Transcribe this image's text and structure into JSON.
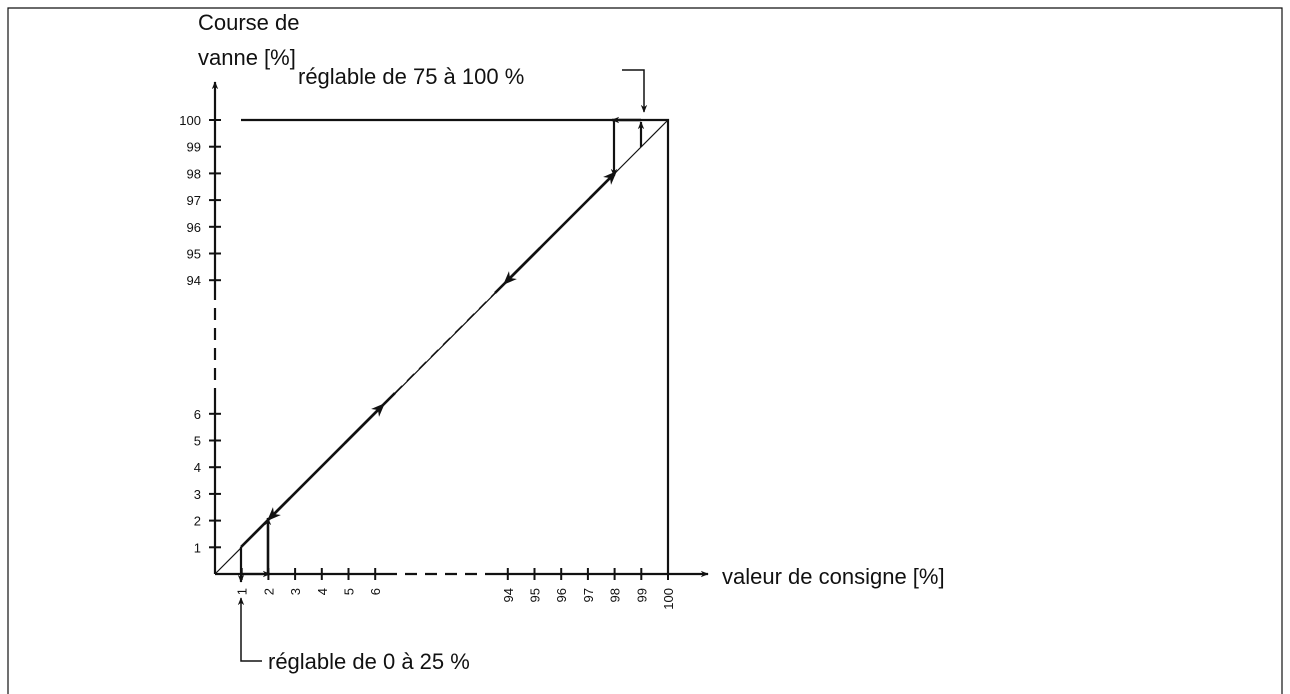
{
  "y_axis": {
    "label": [
      "Course de",
      "vanne [%]"
    ],
    "ticks_low": [
      1,
      2,
      3,
      4,
      5,
      6
    ],
    "ticks_high": [
      94,
      95,
      96,
      97,
      98,
      99,
      100
    ]
  },
  "x_axis": {
    "label": "valeur de consigne [%]",
    "ticks_low": [
      1,
      2,
      3,
      4,
      5,
      6
    ],
    "ticks_high": [
      94,
      95,
      96,
      97,
      98,
      99,
      100
    ]
  },
  "annotations": {
    "top": "réglable de 75 à 100 %",
    "bottom": "réglable de 0 à 25 %"
  }
}
